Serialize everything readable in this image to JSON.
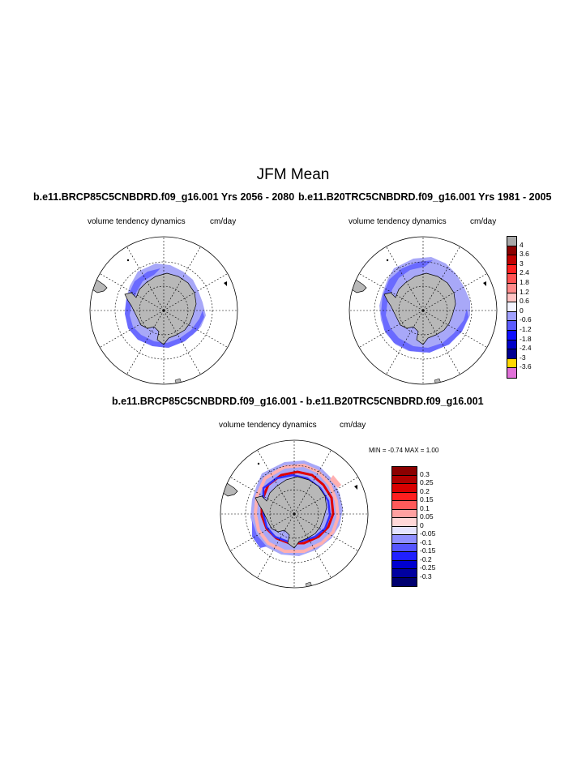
{
  "title": "JFM Mean",
  "panels": [
    {
      "case_title": "b.e11.BRCP85C5CNBDRD.f09_g16.001  Yrs 2056 - 2080",
      "field_label": "volume tendency dynamics",
      "units_label": "cm/day"
    },
    {
      "case_title": "b.e11.B20TRC5CNBDRD.f09_g16.001  Yrs 1981 - 2005",
      "field_label": "volume tendency dynamics",
      "units_label": "cm/day"
    },
    {
      "case_title": "b.e11.BRCP85C5CNBDRD.f09_g16.001 - b.e11.B20TRC5CNBDRD.f09_g16.001",
      "field_label": "volume tendency dynamics",
      "units_label": "cm/day",
      "minmax_label": "MIN =  -0.74 MAX =   1.00"
    }
  ],
  "colorbar_top": {
    "labels": [
      "4",
      "3.6",
      "3",
      "2.4",
      "1.8",
      "1.2",
      "0.6",
      "0",
      "-0.6",
      "-1.2",
      "-1.8",
      "-2.4",
      "-3",
      "-3.6"
    ],
    "colors": [
      "#a8a8a8",
      "#8b0000",
      "#c00000",
      "#ff1f1f",
      "#ff5252",
      "#ff8a8a",
      "#ffc4c4",
      "#f4f4ff",
      "#a0a0ff",
      "#5c5cff",
      "#1010ff",
      "#0000c8",
      "#000090",
      "#ffd700",
      "#e070d8"
    ]
  },
  "colorbar_diff": {
    "labels": [
      "0.3",
      "0.25",
      "0.2",
      "0.15",
      "0.1",
      "0.05",
      "0",
      "-0.05",
      "-0.1",
      "-0.15",
      "-0.2",
      "-0.25",
      "-0.3"
    ],
    "colors": [
      "#8b0000",
      "#b00000",
      "#d80000",
      "#ff1f1f",
      "#ff5a5a",
      "#ffa0a0",
      "#ffd8d8",
      "#e4e4ff",
      "#9090ff",
      "#5555ff",
      "#2020ff",
      "#0000d0",
      "#0000a0",
      "#000070"
    ]
  },
  "map_colors": {
    "land": "#b8b8b8",
    "ice_light": "#a8a8f8",
    "ice_mid": "#6a6aff",
    "ice_dark": "#3030ff",
    "red": "#e00000",
    "pink": "#ffb0b0"
  }
}
